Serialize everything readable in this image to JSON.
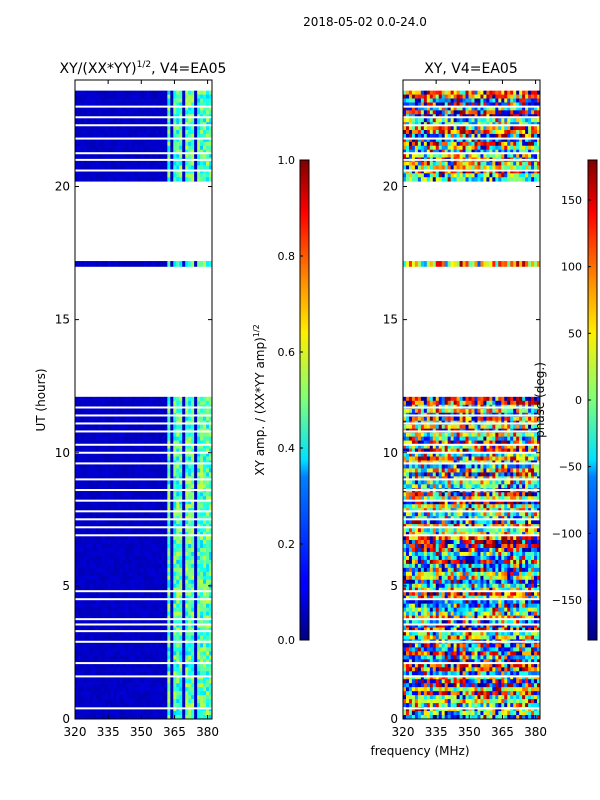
{
  "figure_title": "2018-05-02 0.0-24.0",
  "shared_xlabel": "frequency (MHz)",
  "chart_data": [
    {
      "type": "heatmap",
      "title_main": "XY/(XX*YY)",
      "title_sup": "1/2",
      "title_tail": ", V4=EA05",
      "ylabel": "UT (hours)",
      "xlim": [
        320,
        382
      ],
      "ylim": [
        0,
        24
      ],
      "xticks": [
        320,
        335,
        350,
        365,
        380
      ],
      "xtick_labels": [
        "320",
        "335",
        "350",
        "365",
        "380"
      ],
      "yticks": [
        0,
        5,
        10,
        15,
        20
      ],
      "ytick_labels": [
        "0",
        "5",
        "10",
        "15",
        "20"
      ],
      "colorbar": {
        "label_main": "XY amp. / (XX*YY amp)",
        "label_sup": "1/2",
        "range": [
          0.0,
          1.0
        ],
        "ticks": [
          0.0,
          0.2,
          0.4,
          0.6,
          0.8,
          1.0
        ],
        "tick_labels": [
          "0.0",
          "0.2",
          "0.4",
          "0.6",
          "0.8",
          "1.0"
        ],
        "colormap": "jet"
      },
      "data_hours": [
        [
          0.0,
          12.1
        ],
        [
          17.0,
          17.2
        ],
        [
          20.2,
          23.6
        ]
      ],
      "flagged_hours": [
        0.4,
        1.6,
        2.1,
        2.9,
        3.3,
        3.55,
        3.75,
        4.5,
        4.8,
        6.9,
        7.2,
        7.5,
        7.8,
        8.2,
        8.6,
        9.0,
        9.6,
        10.0,
        10.3,
        10.8,
        11.1,
        11.4,
        11.7,
        20.6,
        21.0,
        21.25,
        21.8,
        22.3,
        22.6,
        23.0
      ],
      "bright_channels_mhz": [
        [
          361.5,
          363.5
        ],
        [
          364.5,
          369
        ],
        [
          370.5,
          374.5
        ],
        [
          375.5,
          380
        ],
        [
          381,
          382
        ]
      ],
      "background_amplitude": 0.05,
      "channel_amplitude": 0.45
    },
    {
      "type": "heatmap",
      "title_main": "XY, V4=EA05",
      "ylabel": "phase (deg.)",
      "xlim": [
        320,
        382
      ],
      "ylim": [
        0,
        24
      ],
      "xticks": [
        320,
        335,
        350,
        365,
        380
      ],
      "xtick_labels": [
        "320",
        "335",
        "350",
        "365",
        "380"
      ],
      "yticks": [
        0,
        5,
        10,
        15,
        20
      ],
      "ytick_labels": [
        "0",
        "5",
        "10",
        "15",
        "20"
      ],
      "colorbar": {
        "label": "phase (deg.)",
        "range": [
          -180,
          180
        ],
        "ticks": [
          -150,
          -100,
          -50,
          0,
          50,
          100,
          150
        ],
        "tick_labels": [
          "−150",
          "−100",
          "−50",
          "0",
          "50",
          "100",
          "150"
        ],
        "colormap": "jet"
      },
      "data_hours": [
        [
          0.0,
          12.1
        ],
        [
          17.0,
          17.2
        ],
        [
          20.2,
          23.6
        ]
      ],
      "flagged_hours": [
        0.4,
        1.6,
        2.1,
        2.9,
        3.3,
        3.55,
        3.75,
        4.5,
        4.8,
        6.9,
        7.2,
        7.5,
        7.8,
        8.2,
        8.6,
        9.0,
        9.6,
        10.0,
        10.3,
        10.8,
        11.1,
        11.4,
        11.7,
        20.6,
        21.0,
        21.25,
        21.8,
        22.3,
        22.6,
        23.0
      ],
      "phase_range_deg": [
        -180,
        180
      ]
    }
  ]
}
